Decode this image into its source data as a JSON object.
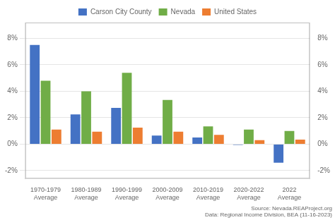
{
  "chart_data": {
    "type": "bar",
    "categories": [
      "1970-1979\nAverage",
      "1980-1989\nAverage",
      "1990-1999\nAverage",
      "2000-2009\nAverage",
      "2010-2019\nAverage",
      "2020-2022\nAverage",
      "2022\nAverage"
    ],
    "series": [
      {
        "name": "Carson City County",
        "color": "#4472c4",
        "values": [
          7.5,
          2.25,
          2.75,
          0.65,
          0.5,
          -0.05,
          -1.4
        ]
      },
      {
        "name": "Nevada",
        "color": "#70ad47",
        "values": [
          4.8,
          4.0,
          5.4,
          3.35,
          1.35,
          1.1,
          1.0
        ]
      },
      {
        "name": "United States",
        "color": "#ed7d31",
        "values": [
          1.1,
          0.95,
          1.25,
          0.95,
          0.7,
          0.3,
          0.35
        ]
      }
    ],
    "ylim": [
      -2.6,
      9.2
    ],
    "yticks": [
      {
        "value": -2,
        "label": "-2%"
      },
      {
        "value": 0,
        "label": "0%"
      },
      {
        "value": 2,
        "label": "2%"
      },
      {
        "value": 4,
        "label": "4%"
      },
      {
        "value": 6,
        "label": "6%"
      },
      {
        "value": 8,
        "label": "8%"
      }
    ],
    "y2lim": [
      -2.6,
      9.2
    ],
    "y2ticks": [
      {
        "value": -2,
        "label": "-2%"
      },
      {
        "value": 0,
        "label": "0%"
      },
      {
        "value": 2,
        "label": "2%"
      },
      {
        "value": 4,
        "label": "4%"
      },
      {
        "value": 6,
        "label": "6%"
      },
      {
        "value": 8,
        "label": "8%"
      }
    ],
    "grid": true,
    "legend": "top",
    "annotations": [
      "Source: Nevada.REAProject.org\nData: Regional Income Division, BEA (11-16-2023)"
    ]
  }
}
